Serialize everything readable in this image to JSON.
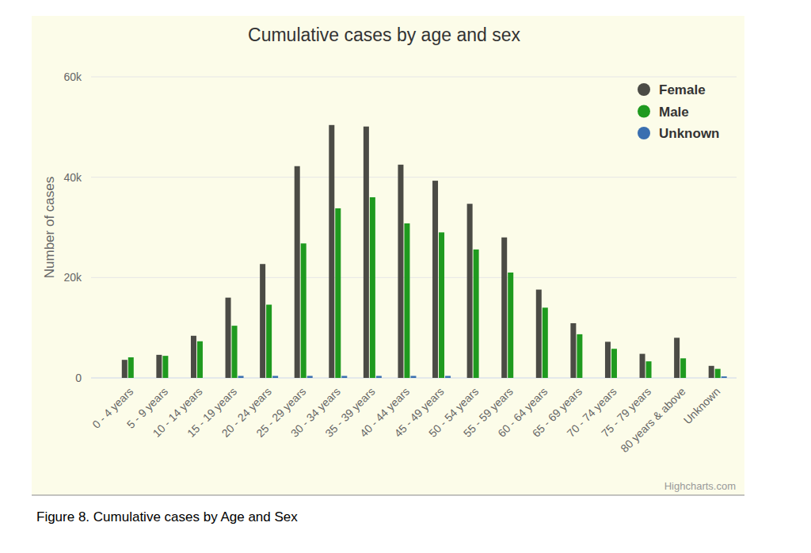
{
  "chart_data": {
    "type": "bar",
    "title": "Cumulative cases by age and sex",
    "y_label": "Number of cases",
    "caption": "Figure 8. Cumulative cases by Age and Sex",
    "annotations": [
      "Highcharts.com"
    ],
    "categories": [
      "0 - 4 years",
      "5 - 9 years",
      "10 - 14 years",
      "15 - 19 years",
      "20 - 24 years",
      "25 - 29 years",
      "30 - 34 years",
      "35 - 39 years",
      "40 - 44 years",
      "45 - 49 years",
      "50 - 54 years",
      "55 - 59 years",
      "60 - 64 years",
      "65 - 69 years",
      "70 - 74 years",
      "75 - 79 years",
      "80 years & above",
      "Unknown"
    ],
    "series": [
      {
        "name": "Female",
        "color": "#4b4b45",
        "values": [
          3600,
          4600,
          8400,
          16000,
          22700,
          42200,
          50400,
          50100,
          42500,
          39300,
          34700,
          28000,
          17600,
          10900,
          7200,
          4800,
          8000,
          2400
        ]
      },
      {
        "name": "Male",
        "color": "#1f9a1f",
        "values": [
          4100,
          4400,
          7300,
          10400,
          14600,
          26800,
          33800,
          36000,
          30800,
          29000,
          25600,
          21000,
          14000,
          8700,
          5800,
          3300,
          3900,
          1800
        ]
      },
      {
        "name": "Unknown",
        "color": "#3a6fb0",
        "values": [
          0,
          0,
          0,
          400,
          400,
          400,
          400,
          400,
          400,
          400,
          0,
          0,
          0,
          0,
          0,
          0,
          0,
          300
        ]
      }
    ],
    "ylim": [
      0,
      60000
    ],
    "yticks": [
      {
        "value": 0,
        "label": "0"
      },
      {
        "value": 20000,
        "label": "20k"
      },
      {
        "value": 40000,
        "label": "40k"
      },
      {
        "value": 60000,
        "label": "60k"
      }
    ],
    "grid": true,
    "legend": "top-right"
  }
}
